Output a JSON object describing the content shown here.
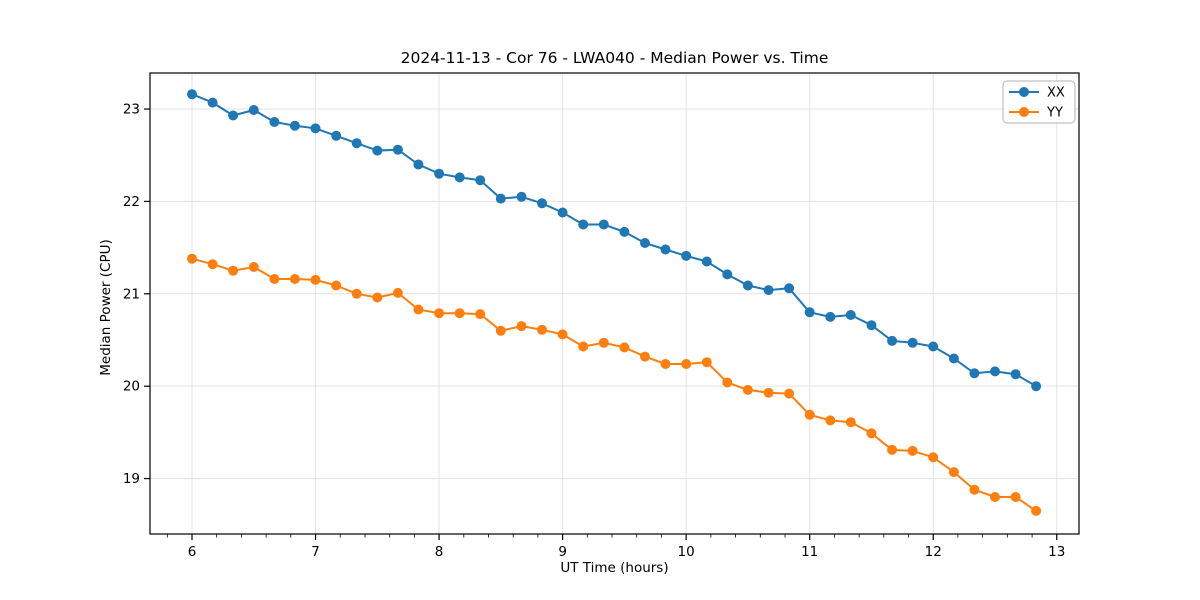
{
  "figure": {
    "title": "2024-11-13 - Cor 76 - LWA040 - Median Power vs. Time"
  },
  "chart_data": {
    "type": "line",
    "title": "2024-11-13 - Cor 76 - LWA040 - Median Power vs. Time",
    "xlabel": "UT Time (hours)",
    "ylabel": "Median Power (CPU)",
    "xlim": [
      5.66,
      13.18
    ],
    "ylim": [
      18.4,
      23.39
    ],
    "xticks": [
      6,
      7,
      8,
      9,
      10,
      11,
      12,
      13
    ],
    "yticks": [
      19,
      20,
      21,
      22,
      23
    ],
    "minor_xtick_step": 0.2,
    "grid": true,
    "grid_color": "#e3e3e3",
    "legend": {
      "position": "upper right",
      "entries": [
        "XX",
        "YY"
      ]
    },
    "x": [
      6.0,
      6.167,
      6.333,
      6.5,
      6.667,
      6.833,
      7.0,
      7.167,
      7.333,
      7.5,
      7.667,
      7.833,
      8.0,
      8.167,
      8.333,
      8.5,
      8.667,
      8.833,
      9.0,
      9.167,
      9.333,
      9.5,
      9.667,
      9.833,
      10.0,
      10.167,
      10.333,
      10.5,
      10.667,
      10.833,
      11.0,
      11.167,
      11.333,
      11.5,
      11.667,
      11.833,
      12.0,
      12.167,
      12.333,
      12.5,
      12.667,
      12.833
    ],
    "series": [
      {
        "name": "XX",
        "color": "#1f77b4",
        "values": [
          23.16,
          23.07,
          22.93,
          22.99,
          22.86,
          22.82,
          22.79,
          22.71,
          22.63,
          22.55,
          22.56,
          22.4,
          22.3,
          22.26,
          22.23,
          22.03,
          22.05,
          21.98,
          21.88,
          21.75,
          21.75,
          21.67,
          21.55,
          21.48,
          21.41,
          21.35,
          21.21,
          21.09,
          21.04,
          21.06,
          20.8,
          20.75,
          20.77,
          20.66,
          20.49,
          20.47,
          20.43,
          20.3,
          20.14,
          20.16,
          20.13,
          20.0
        ]
      },
      {
        "name": "YY",
        "color": "#ff7f0e",
        "values": [
          21.38,
          21.32,
          21.25,
          21.29,
          21.16,
          21.16,
          21.15,
          21.09,
          21.0,
          20.96,
          21.01,
          20.83,
          20.79,
          20.79,
          20.78,
          20.6,
          20.65,
          20.61,
          20.56,
          20.43,
          20.47,
          20.42,
          20.32,
          20.24,
          20.24,
          20.26,
          20.04,
          19.96,
          19.93,
          19.92,
          19.69,
          19.63,
          19.61,
          19.49,
          19.31,
          19.3,
          19.23,
          19.07,
          18.88,
          18.8,
          18.8,
          18.65
        ]
      }
    ]
  }
}
